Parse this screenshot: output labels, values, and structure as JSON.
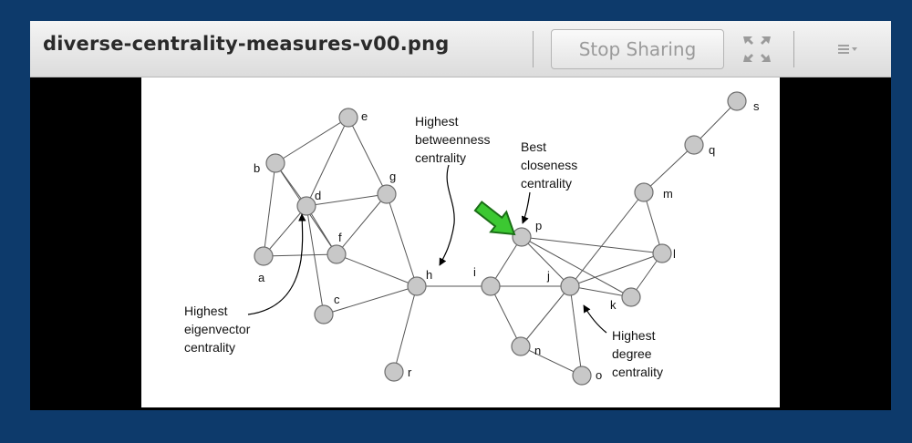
{
  "window": {
    "title": "diverse-centrality-measures-v00.png",
    "stop_sharing_label": "Stop Sharing",
    "fullscreen_icon": "fullscreen-icon",
    "menu_icon": "menu-icon"
  },
  "colors": {
    "background": "#0d3a6b",
    "node_fill": "#c8c8c8",
    "arrow_green": "#3cc832"
  },
  "graph": {
    "node_labels": [
      "a",
      "b",
      "c",
      "d",
      "e",
      "f",
      "g",
      "h",
      "i",
      "j",
      "k",
      "l",
      "m",
      "n",
      "o",
      "p",
      "q",
      "r",
      "s"
    ],
    "annotations": {
      "betweenness": [
        "Highest",
        "betweenness",
        "centrality"
      ],
      "closeness": [
        "Best",
        "closeness",
        "centrality"
      ],
      "eigenvector": [
        "Highest",
        "eigenvector",
        "centrality"
      ],
      "degree": [
        "Highest",
        "degree",
        "centrality"
      ]
    }
  }
}
